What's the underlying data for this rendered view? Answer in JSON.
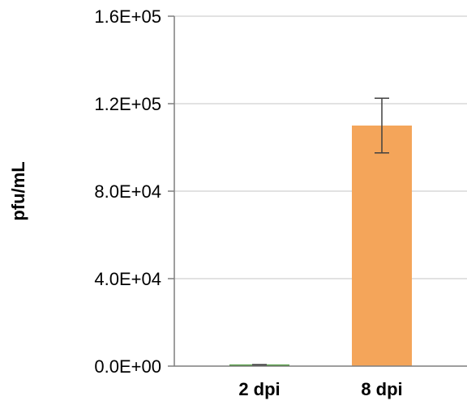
{
  "chart_data": {
    "type": "bar",
    "title": "",
    "xlabel": "",
    "ylabel": "pfu/mL",
    "categories": [
      "2 dpi",
      "8 dpi"
    ],
    "values": [
      500,
      110000
    ],
    "error": [
      200,
      12500
    ],
    "bar_colors": [
      "#4e9a3e",
      "#f4a55a"
    ],
    "error_color": "#404040",
    "ylim": [
      0,
      160000
    ],
    "yticks": [
      0,
      40000,
      80000,
      120000,
      160000
    ],
    "ytick_labels": [
      "0.0E+00",
      "4.0E+04",
      "8.0E+04",
      "1.2E+05",
      "1.6E+05"
    ],
    "grid": true,
    "grid_color": "#d9d9d9",
    "axis_color": "#7f7f7f",
    "legend": "none"
  }
}
